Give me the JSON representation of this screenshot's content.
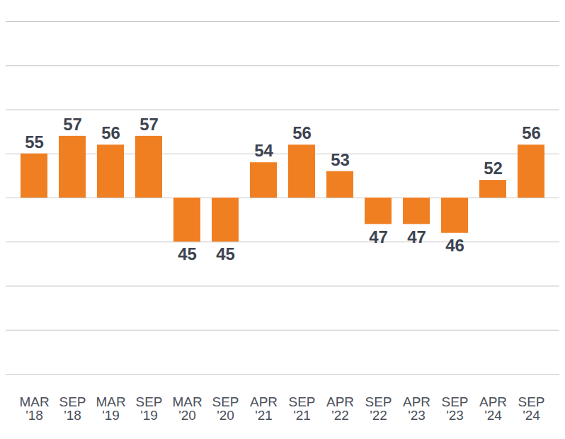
{
  "chart_data": {
    "type": "bar",
    "categories": [
      "MAR '18",
      "SEP '18",
      "MAR '19",
      "SEP '19",
      "MAR '20",
      "SEP '20",
      "APR '21",
      "SEP '21",
      "APR '22",
      "SEP '22",
      "APR '23",
      "SEP '23",
      "APR '24",
      "SEP '24"
    ],
    "values": [
      55,
      57,
      56,
      57,
      45,
      45,
      54,
      56,
      53,
      47,
      47,
      46,
      52,
      56
    ],
    "baseline": 50,
    "color": "#f07f22",
    "ylim": [
      30,
      70
    ],
    "yticks": [
      30,
      35,
      40,
      45,
      50,
      55,
      60,
      65,
      70
    ],
    "grid": true,
    "data_labels": true,
    "tick_labels": "x"
  }
}
